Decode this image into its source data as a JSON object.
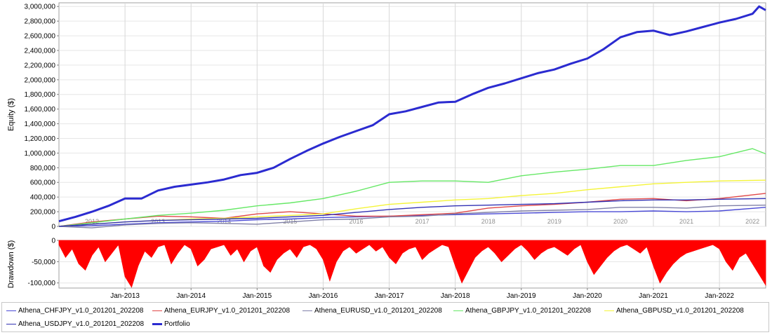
{
  "chart_data": [
    {
      "type": "line",
      "ylabel": "Equity ($)",
      "xlabel": "",
      "ylim": [
        0,
        3050000
      ],
      "yticks": [
        0,
        200000,
        400000,
        600000,
        800000,
        1000000,
        1200000,
        1400000,
        1600000,
        1800000,
        2000000,
        2200000,
        2400000,
        2600000,
        2800000,
        3000000
      ],
      "ytick_labels": [
        "0",
        "200,000",
        "400,000",
        "600,000",
        "800,000",
        "1,000,000",
        "1,200,000",
        "1,400,000",
        "1,600,000",
        "1,800,000",
        "2,000,000",
        "2,200,000",
        "2,400,000",
        "2,600,000",
        "2,800,000",
        "3,000,000"
      ],
      "xlim": [
        2012.0,
        2022.7
      ],
      "inner_year_labels": [
        "2012",
        "2013",
        "2014",
        "2015",
        "2016",
        "2017",
        "2018",
        "2019",
        "2020",
        "2021",
        "2022"
      ],
      "grid": true,
      "legend_placement": "bottom",
      "series": [
        {
          "name": "Athena_CHFJPY_v1.0_201201_202208",
          "color": "#4a4ad6",
          "x": [
            2012.0,
            2012.5,
            2013.0,
            2013.5,
            2014.0,
            2014.5,
            2015.0,
            2015.5,
            2016.0,
            2016.5,
            2017.0,
            2017.5,
            2018.0,
            2018.5,
            2019.0,
            2019.5,
            2020.0,
            2020.5,
            2021.0,
            2021.5,
            2022.0,
            2022.7
          ],
          "values": [
            0,
            10000,
            30000,
            50000,
            60000,
            70000,
            90000,
            100000,
            120000,
            130000,
            140000,
            150000,
            160000,
            170000,
            180000,
            190000,
            200000,
            200000,
            210000,
            200000,
            210000,
            260000
          ]
        },
        {
          "name": "Athena_EURJPY_v1.0_201201_202208",
          "color": "#e04848",
          "x": [
            2012.0,
            2012.5,
            2013.0,
            2013.5,
            2014.0,
            2014.5,
            2015.0,
            2015.5,
            2016.0,
            2016.5,
            2017.0,
            2017.5,
            2018.0,
            2018.5,
            2019.0,
            2019.5,
            2020.0,
            2020.5,
            2021.0,
            2021.5,
            2022.0,
            2022.7
          ],
          "values": [
            0,
            60000,
            100000,
            140000,
            130000,
            110000,
            170000,
            200000,
            170000,
            140000,
            140000,
            160000,
            180000,
            250000,
            280000,
            300000,
            330000,
            370000,
            380000,
            350000,
            380000,
            450000
          ]
        },
        {
          "name": "Athena_EURUSD_v1.0_201201_202208",
          "color": "#8080a8",
          "x": [
            2012.0,
            2012.5,
            2013.0,
            2013.5,
            2014.0,
            2014.5,
            2015.0,
            2015.5,
            2016.0,
            2016.5,
            2017.0,
            2017.5,
            2018.0,
            2018.5,
            2019.0,
            2019.5,
            2020.0,
            2020.5,
            2021.0,
            2021.5,
            2022.0,
            2022.7
          ],
          "values": [
            0,
            -20000,
            20000,
            40000,
            50000,
            40000,
            30000,
            60000,
            90000,
            100000,
            130000,
            140000,
            170000,
            190000,
            210000,
            220000,
            230000,
            260000,
            260000,
            250000,
            280000,
            290000
          ]
        },
        {
          "name": "Athena_GBPJPY_v1.0_201201_202208",
          "color": "#66e866",
          "x": [
            2012.0,
            2012.5,
            2013.0,
            2013.5,
            2014.0,
            2014.5,
            2015.0,
            2015.5,
            2016.0,
            2016.5,
            2017.0,
            2017.5,
            2018.0,
            2018.5,
            2019.0,
            2019.5,
            2020.0,
            2020.5,
            2021.0,
            2021.5,
            2022.0,
            2022.5,
            2022.7
          ],
          "values": [
            0,
            50000,
            100000,
            150000,
            180000,
            220000,
            280000,
            320000,
            380000,
            480000,
            600000,
            620000,
            620000,
            600000,
            690000,
            740000,
            780000,
            830000,
            830000,
            900000,
            950000,
            1060000,
            990000
          ]
        },
        {
          "name": "Athena_GBPUSD_v1.0_201201_202208",
          "color": "#f4f438",
          "x": [
            2012.0,
            2012.5,
            2013.0,
            2013.5,
            2014.0,
            2014.5,
            2015.0,
            2015.5,
            2016.0,
            2016.5,
            2017.0,
            2017.5,
            2018.0,
            2018.5,
            2019.0,
            2019.5,
            2020.0,
            2020.5,
            2021.0,
            2021.5,
            2022.0,
            2022.7
          ],
          "values": [
            0,
            30000,
            60000,
            80000,
            100000,
            110000,
            130000,
            150000,
            170000,
            240000,
            300000,
            330000,
            360000,
            380000,
            420000,
            450000,
            500000,
            540000,
            580000,
            600000,
            620000,
            630000
          ]
        },
        {
          "name": "Athena_USDJPY_v1.0_201201_202208",
          "color": "#3232b4",
          "x": [
            2012.0,
            2012.5,
            2013.0,
            2013.5,
            2014.0,
            2014.5,
            2015.0,
            2015.5,
            2016.0,
            2016.5,
            2017.0,
            2017.5,
            2018.0,
            2018.5,
            2019.0,
            2019.5,
            2020.0,
            2020.5,
            2021.0,
            2021.5,
            2022.0,
            2022.7
          ],
          "values": [
            0,
            30000,
            60000,
            80000,
            90000,
            100000,
            110000,
            130000,
            150000,
            190000,
            230000,
            260000,
            280000,
            290000,
            300000,
            310000,
            330000,
            350000,
            360000,
            360000,
            370000,
            380000
          ]
        },
        {
          "name": "Portfolio",
          "color": "#2b2bd0",
          "bold": true,
          "x": [
            2012.0,
            2012.25,
            2012.5,
            2012.75,
            2013.0,
            2013.25,
            2013.5,
            2013.75,
            2014.0,
            2014.25,
            2014.5,
            2014.75,
            2015.0,
            2015.25,
            2015.5,
            2015.75,
            2016.0,
            2016.25,
            2016.5,
            2016.75,
            2017.0,
            2017.25,
            2017.5,
            2017.75,
            2018.0,
            2018.25,
            2018.5,
            2018.75,
            2019.0,
            2019.25,
            2019.5,
            2019.75,
            2020.0,
            2020.25,
            2020.5,
            2020.75,
            2021.0,
            2021.25,
            2021.5,
            2021.75,
            2022.0,
            2022.25,
            2022.5,
            2022.6,
            2022.7
          ],
          "values": [
            70000,
            130000,
            200000,
            280000,
            380000,
            380000,
            490000,
            540000,
            570000,
            600000,
            640000,
            700000,
            730000,
            800000,
            920000,
            1030000,
            1130000,
            1220000,
            1300000,
            1380000,
            1530000,
            1570000,
            1630000,
            1690000,
            1700000,
            1800000,
            1890000,
            1950000,
            2020000,
            2090000,
            2140000,
            2220000,
            2290000,
            2420000,
            2580000,
            2650000,
            2670000,
            2610000,
            2660000,
            2720000,
            2780000,
            2830000,
            2900000,
            3000000,
            2950000
          ]
        }
      ]
    },
    {
      "type": "area",
      "ylabel": "Drawdown ($)",
      "ylim": [
        -112000,
        0
      ],
      "yticks": [
        0,
        -50000,
        -100000
      ],
      "ytick_labels": [
        "0",
        "-50,000",
        "-100,000"
      ],
      "xlim": [
        2012.0,
        2022.7
      ],
      "xticks": [
        2013.0,
        2014.0,
        2015.0,
        2016.0,
        2017.0,
        2018.0,
        2019.0,
        2020.0,
        2021.0,
        2022.0
      ],
      "xtick_labels": [
        "Jan-2013",
        "Jan-2014",
        "Jan-2015",
        "Jan-2016",
        "Jan-2017",
        "Jan-2018",
        "Jan-2019",
        "Jan-2020",
        "Jan-2021",
        "Jan-2022"
      ],
      "color": "#ff0000",
      "x": [
        2012.0,
        2012.1,
        2012.2,
        2012.3,
        2012.4,
        2012.5,
        2012.6,
        2012.7,
        2012.8,
        2012.9,
        2013.0,
        2013.1,
        2013.2,
        2013.3,
        2013.4,
        2013.5,
        2013.6,
        2013.7,
        2013.8,
        2013.9,
        2014.0,
        2014.1,
        2014.2,
        2014.3,
        2014.4,
        2014.5,
        2014.6,
        2014.7,
        2014.8,
        2014.9,
        2015.0,
        2015.1,
        2015.2,
        2015.3,
        2015.4,
        2015.5,
        2015.6,
        2015.7,
        2015.8,
        2015.9,
        2016.0,
        2016.1,
        2016.2,
        2016.3,
        2016.4,
        2016.5,
        2016.6,
        2016.7,
        2016.8,
        2016.9,
        2017.0,
        2017.1,
        2017.2,
        2017.3,
        2017.4,
        2017.5,
        2017.6,
        2017.7,
        2017.8,
        2017.9,
        2018.0,
        2018.1,
        2018.2,
        2018.3,
        2018.4,
        2018.5,
        2018.6,
        2018.7,
        2018.8,
        2018.9,
        2019.0,
        2019.1,
        2019.2,
        2019.3,
        2019.4,
        2019.5,
        2019.6,
        2019.7,
        2019.8,
        2019.9,
        2020.0,
        2020.1,
        2020.2,
        2020.3,
        2020.4,
        2020.5,
        2020.6,
        2020.7,
        2020.8,
        2020.9,
        2021.0,
        2021.1,
        2021.2,
        2021.3,
        2021.4,
        2021.5,
        2021.6,
        2021.7,
        2021.8,
        2021.9,
        2022.0,
        2022.1,
        2022.2,
        2022.3,
        2022.4,
        2022.5,
        2022.6,
        2022.7
      ],
      "values": [
        -10000,
        -40000,
        -20000,
        -55000,
        -70000,
        -35000,
        -15000,
        -50000,
        -30000,
        -10000,
        -85000,
        -110000,
        -60000,
        -25000,
        -40000,
        -15000,
        -10000,
        -55000,
        -30000,
        -10000,
        -20000,
        -60000,
        -45000,
        -20000,
        -15000,
        -10000,
        -35000,
        -20000,
        -50000,
        -25000,
        -15000,
        -60000,
        -75000,
        -45000,
        -30000,
        -20000,
        -40000,
        -15000,
        -10000,
        -20000,
        -45000,
        -95000,
        -50000,
        -25000,
        -15000,
        -30000,
        -20000,
        -10000,
        -25000,
        -15000,
        -40000,
        -55000,
        -30000,
        -20000,
        -15000,
        -45000,
        -30000,
        -20000,
        -10000,
        -15000,
        -60000,
        -100000,
        -70000,
        -40000,
        -25000,
        -15000,
        -30000,
        -50000,
        -35000,
        -20000,
        -10000,
        -25000,
        -45000,
        -30000,
        -20000,
        -15000,
        -25000,
        -35000,
        -20000,
        -10000,
        -50000,
        -80000,
        -60000,
        -40000,
        -25000,
        -15000,
        -10000,
        -20000,
        -30000,
        -15000,
        -60000,
        -100000,
        -75000,
        -55000,
        -40000,
        -30000,
        -25000,
        -20000,
        -15000,
        -10000,
        -20000,
        -50000,
        -70000,
        -40000,
        -30000,
        -55000,
        -80000,
        -105000
      ]
    }
  ],
  "legend": {
    "items": [
      {
        "label": "Athena_CHFJPY_v1.0_201201_202208",
        "color": "#4a4ad6"
      },
      {
        "label": "Athena_EURJPY_v1.0_201201_202208",
        "color": "#e04848"
      },
      {
        "label": "Athena_EURUSD_v1.0_201201_202208",
        "color": "#8080a8"
      },
      {
        "label": "Athena_GBPJPY_v1.0_201201_202208",
        "color": "#66e866"
      },
      {
        "label": "Athena_GBPUSD_v1.0_201201_202208",
        "color": "#f4f438"
      },
      {
        "label": "Athena_USDJPY_v1.0_201201_202208",
        "color": "#3232b4"
      },
      {
        "label": "Portfolio",
        "color": "#2b2bd0"
      }
    ]
  }
}
